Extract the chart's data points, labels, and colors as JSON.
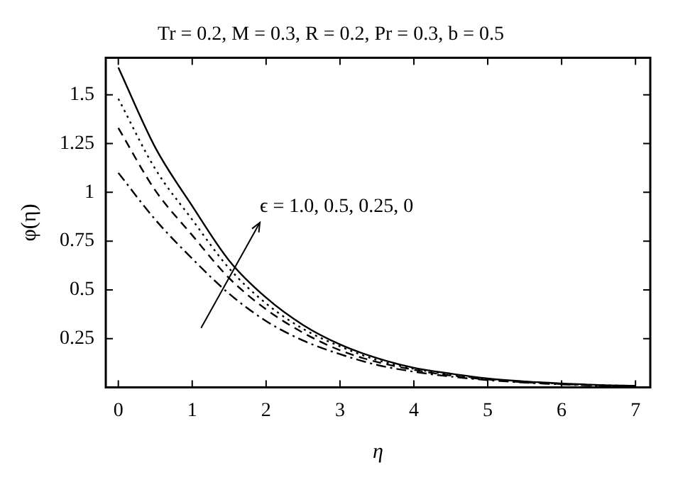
{
  "chart_data": {
    "type": "line",
    "title": "Tr = 0.2, M = 0.3, R = 0.2, Pr = 0.3, b = 0.5",
    "xlabel": "η",
    "ylabel": "φ(η)",
    "x": [
      0,
      0.5,
      1,
      1.5,
      2,
      2.5,
      3,
      3.5,
      4,
      4.5,
      5,
      5.5,
      6,
      6.5,
      7
    ],
    "series": [
      {
        "color": "#000000",
        "line_style": "solid",
        "values": [
          1.64,
          1.23,
          0.93,
          0.65,
          0.46,
          0.32,
          0.22,
          0.15,
          0.1,
          0.07,
          0.045,
          0.03,
          0.02,
          0.012,
          0.008
        ]
      },
      {
        "color": "#000000",
        "line_style": "dotted",
        "values": [
          1.48,
          1.12,
          0.86,
          0.61,
          0.43,
          0.3,
          0.21,
          0.14,
          0.095,
          0.065,
          0.043,
          0.028,
          0.018,
          0.011,
          0.007
        ]
      },
      {
        "color": "#000000",
        "line_style": "dashed",
        "values": [
          1.33,
          1.01,
          0.78,
          0.56,
          0.4,
          0.28,
          0.19,
          0.13,
          0.09,
          0.06,
          0.04,
          0.026,
          0.017,
          0.01,
          0.006
        ]
      },
      {
        "color": "#000000",
        "line_style": "dashdot",
        "values": [
          1.1,
          0.86,
          0.66,
          0.48,
          0.34,
          0.24,
          0.17,
          0.115,
          0.08,
          0.055,
          0.037,
          0.024,
          0.015,
          0.009,
          0.005
        ]
      }
    ],
    "xlim": [
      -0.17,
      7.2
    ],
    "xticks": [
      0,
      1,
      2,
      3,
      4,
      5,
      6,
      7
    ],
    "ylim": [
      0,
      1.69
    ],
    "yticks": [
      0.25,
      0.5,
      0.75,
      {
        "value": 1,
        "label": "1"
      },
      1.25,
      1.5
    ],
    "annotations": [
      "ϵ = 1.0, 0.5, 0.25, 0"
    ],
    "grid": false,
    "legend": false,
    "marker": "none"
  }
}
